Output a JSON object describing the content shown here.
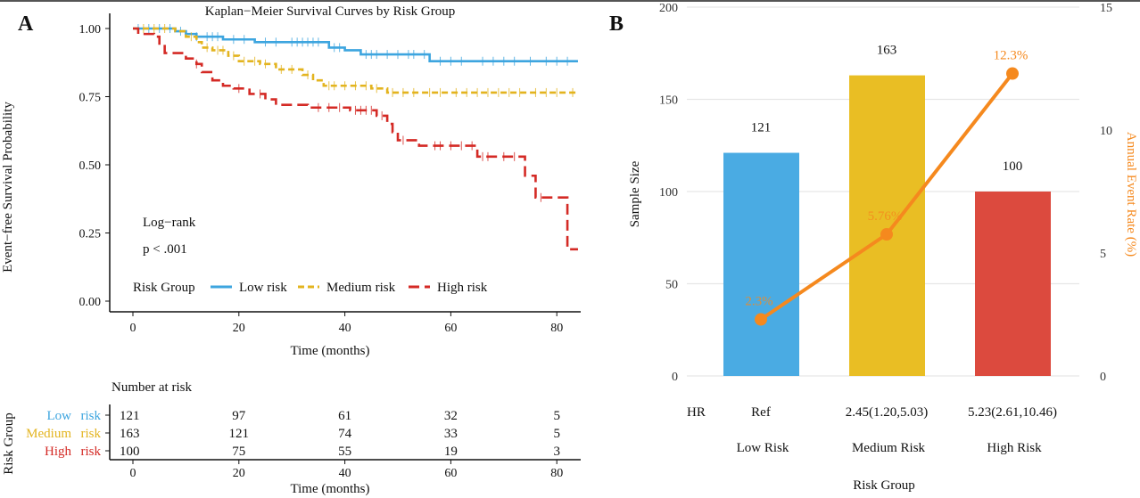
{
  "panel_labels": {
    "a": "A",
    "b": "B"
  },
  "chart_data": [
    {
      "type": "line",
      "subtype": "kaplan-meier step",
      "title": "Kaplan−Meier Survival Curves by Risk Group",
      "xlabel": "Time (months)",
      "ylabel": "Event−free Survival Probability",
      "xlim": [
        0,
        84
      ],
      "ylim": [
        0,
        1
      ],
      "xticks": [
        "0",
        "20",
        "40",
        "60",
        "80"
      ],
      "yticks": [
        "0.00",
        "0.25",
        "0.50",
        "0.75",
        "1.00"
      ],
      "annotation": {
        "line1": "Log−rank",
        "line2": "p < .001"
      },
      "legend": {
        "title": "Risk Group",
        "placement": "bottom-left inside"
      },
      "series": [
        {
          "name": "Low risk",
          "color": "#3da5df",
          "dash": "solid",
          "steps": [
            [
              0,
              1.0
            ],
            [
              8,
              0.99
            ],
            [
              10,
              0.98
            ],
            [
              12,
              0.97
            ],
            [
              17,
              0.96
            ],
            [
              23,
              0.95
            ],
            [
              37,
              0.93
            ],
            [
              40,
              0.92
            ],
            [
              43,
              0.905
            ],
            [
              56,
              0.88
            ],
            [
              84,
              0.88
            ]
          ],
          "censored": [
            1,
            3,
            5,
            7,
            9,
            12,
            14,
            15,
            16,
            19,
            21,
            25,
            27,
            30,
            31,
            32,
            33,
            34,
            35,
            38,
            39,
            44,
            45,
            46,
            48,
            50,
            52,
            53,
            55,
            58,
            60,
            62,
            66,
            68,
            70,
            72,
            75,
            78,
            80,
            82
          ]
        },
        {
          "name": "Medium risk",
          "color": "#e3b41f",
          "dash": "dashed",
          "steps": [
            [
              0,
              1.0
            ],
            [
              8,
              0.99
            ],
            [
              10,
              0.97
            ],
            [
              12,
              0.95
            ],
            [
              13,
              0.93
            ],
            [
              15,
              0.92
            ],
            [
              18,
              0.9
            ],
            [
              20,
              0.88
            ],
            [
              24,
              0.87
            ],
            [
              27,
              0.85
            ],
            [
              32,
              0.83
            ],
            [
              34,
              0.81
            ],
            [
              36,
              0.79
            ],
            [
              45,
              0.78
            ],
            [
              48,
              0.765
            ],
            [
              84,
              0.765
            ]
          ],
          "censored": [
            2,
            4,
            6,
            11,
            14,
            16,
            17,
            19,
            21,
            23,
            25,
            28,
            30,
            33,
            37,
            38,
            40,
            42,
            44,
            46,
            49,
            51,
            53,
            56,
            58,
            61,
            63,
            65,
            67,
            69,
            71,
            73,
            76,
            78,
            80,
            83
          ]
        },
        {
          "name": "High risk",
          "color": "#d42a25",
          "dash": "longdash",
          "steps": [
            [
              0,
              1.0
            ],
            [
              1,
              0.98
            ],
            [
              4,
              0.97
            ],
            [
              5,
              0.94
            ],
            [
              6,
              0.91
            ],
            [
              10,
              0.89
            ],
            [
              12,
              0.87
            ],
            [
              13,
              0.84
            ],
            [
              15,
              0.81
            ],
            [
              17,
              0.79
            ],
            [
              19,
              0.78
            ],
            [
              22,
              0.76
            ],
            [
              25,
              0.74
            ],
            [
              27,
              0.72
            ],
            [
              33,
              0.71
            ],
            [
              41,
              0.7
            ],
            [
              46,
              0.68
            ],
            [
              48,
              0.65
            ],
            [
              49,
              0.62
            ],
            [
              50,
              0.59
            ],
            [
              54,
              0.57
            ],
            [
              65,
              0.53
            ],
            [
              74,
              0.46
            ],
            [
              76,
              0.38
            ],
            [
              82,
              0.19
            ],
            [
              84,
              0.19
            ]
          ],
          "censored": [
            12,
            20,
            24,
            35,
            37,
            39,
            42,
            43,
            44,
            45,
            47,
            51,
            57,
            58,
            60,
            62,
            64,
            66,
            67,
            70,
            72,
            77
          ]
        }
      ]
    },
    {
      "type": "table",
      "title": "Number at risk",
      "ylabel": "Risk Group",
      "xlabel": "Time (months)",
      "xticks": [
        "0",
        "20",
        "40",
        "60",
        "80"
      ],
      "rows": [
        {
          "label_a": "Low",
          "label_b": "risk",
          "color": "#3da5df",
          "values": [
            "121",
            "97",
            "61",
            "32",
            "5"
          ]
        },
        {
          "label_a": "Medium",
          "label_b": "risk",
          "color": "#e3b41f",
          "values": [
            "163",
            "121",
            "74",
            "33",
            "5"
          ]
        },
        {
          "label_a": "High",
          "label_b": "risk",
          "color": "#d42a25",
          "values": [
            "100",
            "75",
            "55",
            "19",
            "3"
          ]
        }
      ]
    },
    {
      "type": "bar",
      "combo": "bar + line (dual axis)",
      "categories": [
        "Low Risk",
        "Medium Risk",
        "High Risk"
      ],
      "xlabel": "Risk Group",
      "ylabel": "Sample Size",
      "ylim": [
        0,
        200
      ],
      "yticks": [
        "0",
        "50",
        "100",
        "150",
        "200"
      ],
      "y2label": "Annual Event Rate (%)",
      "y2lim": [
        0,
        15
      ],
      "y2ticks": [
        "0",
        "5",
        "10",
        "15"
      ],
      "grid": true,
      "bar_values": [
        121,
        163,
        100
      ],
      "bar_labels": [
        "121",
        "163",
        "100"
      ],
      "bar_colors": [
        "#4aabe3",
        "#e9be24",
        "#dc4a3e"
      ],
      "line_values": [
        2.3,
        5.76,
        12.3
      ],
      "line_labels": [
        "2.3%",
        "5.76%",
        "12.3%"
      ],
      "line_color": "#f5891e",
      "hr_label": "HR",
      "hr_values": [
        "Ref",
        "2.45(1.20,5.03)",
        "5.23(2.61,10.46)"
      ]
    }
  ]
}
